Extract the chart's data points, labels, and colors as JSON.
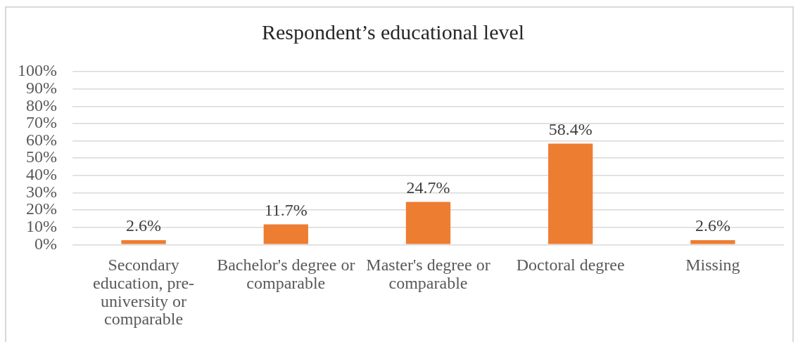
{
  "chart_data": {
    "type": "bar",
    "title": "Respondent’s educational level",
    "categories": [
      "Secondary education, pre-university or comparable",
      "Bachelor's degree or comparable",
      "Master's degree or comparable",
      "Doctoral degree",
      "Missing"
    ],
    "values": [
      2.6,
      11.7,
      24.7,
      58.4,
      2.6
    ],
    "color": "#ed7d31",
    "value_labels": [
      "2.6%",
      "11.7%",
      "24.7%",
      "58.4%",
      "2.6%"
    ],
    "ylim": [
      0,
      100
    ],
    "yticks": [
      {
        "value": 0,
        "label": "0%"
      },
      {
        "value": 10,
        "label": "10%"
      },
      {
        "value": 20,
        "label": "20%"
      },
      {
        "value": 30,
        "label": "30%"
      },
      {
        "value": 40,
        "label": "40%"
      },
      {
        "value": 50,
        "label": "50%"
      },
      {
        "value": 60,
        "label": "60%"
      },
      {
        "value": 70,
        "label": "70%"
      },
      {
        "value": 80,
        "label": "80%"
      },
      {
        "value": 90,
        "label": "90%"
      },
      {
        "value": 100,
        "label": "100%"
      }
    ],
    "grid": "y"
  }
}
